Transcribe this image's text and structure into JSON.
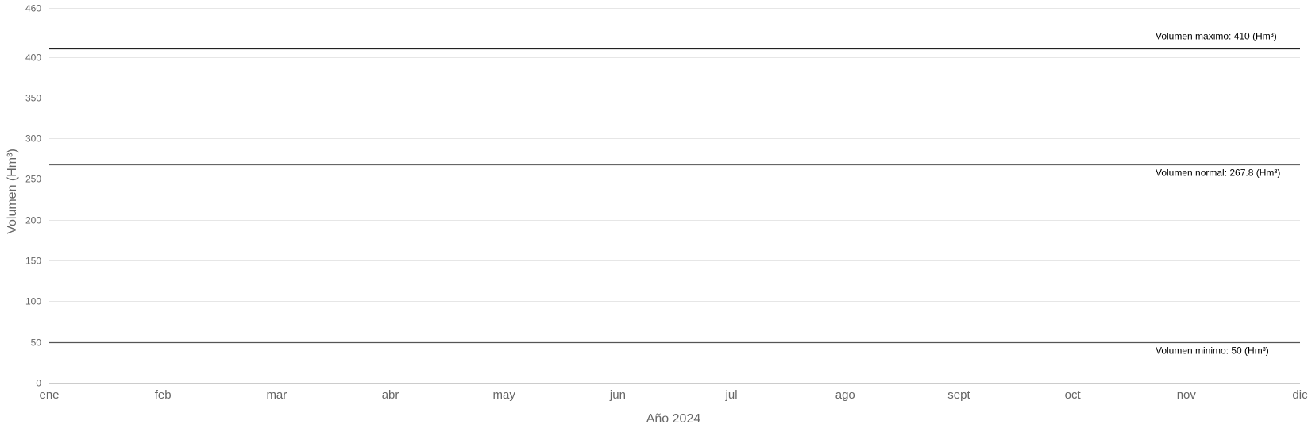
{
  "chart_data": {
    "type": "line",
    "title": "",
    "xlabel": "Año 2024",
    "ylabel": "Volumen (Hm³)",
    "ylim": [
      0,
      460
    ],
    "yticks": [
      0,
      50,
      100,
      150,
      200,
      250,
      300,
      350,
      400,
      460
    ],
    "categories": [
      "ene",
      "feb",
      "mar",
      "abr",
      "may",
      "jun",
      "jul",
      "ago",
      "sept",
      "oct",
      "nov",
      "dic"
    ],
    "grid": true,
    "series": [],
    "reference_lines": [
      {
        "label": "Volumen maximo: 410 (Hm³)",
        "value": 410,
        "color": "#222222"
      },
      {
        "label": "Volumen normal: 267.8 (Hm³)",
        "value": 267.8,
        "color": "#666666"
      },
      {
        "label": "Volumen minimo: 50 (Hm³)",
        "value": 50,
        "color": "#555555"
      }
    ]
  }
}
